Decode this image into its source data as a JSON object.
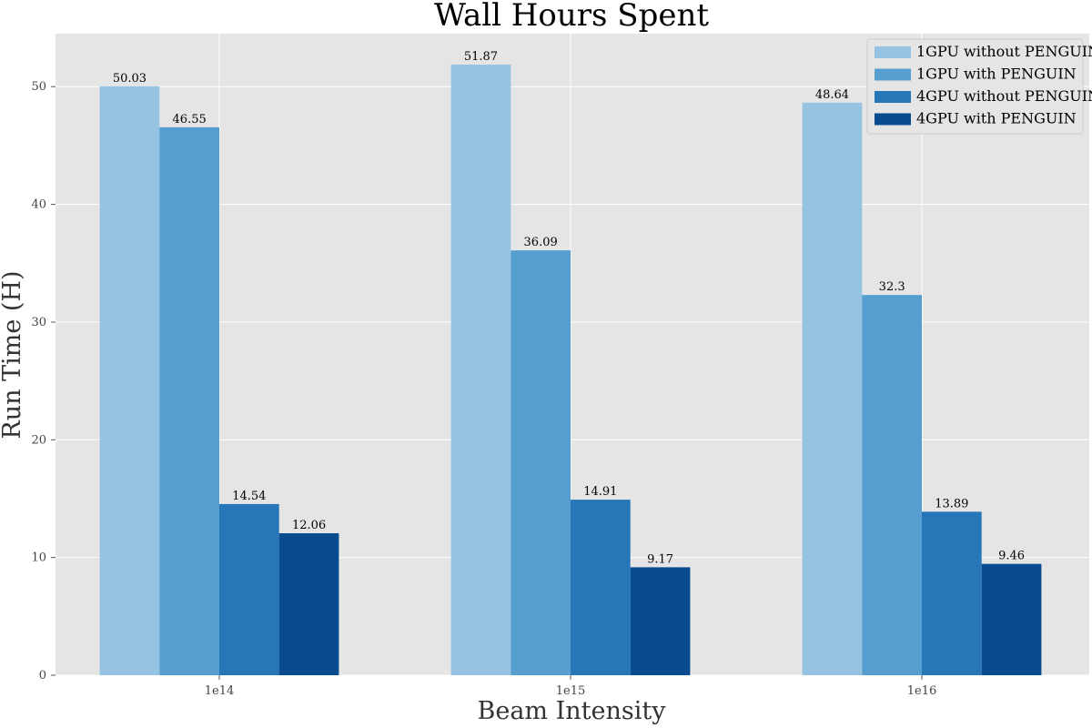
{
  "chart_data": {
    "type": "bar",
    "title": "Wall Hours Spent",
    "xlabel": "Beam Intensity",
    "ylabel": "Run Time (H)",
    "categories": [
      "1e14",
      "1e15",
      "1e16"
    ],
    "ylim": [
      0,
      54.5
    ],
    "yticks": [
      0,
      10,
      20,
      30,
      40,
      50
    ],
    "grid": true,
    "legend_position": "top-right",
    "series": [
      {
        "name": "1GPU without PENGUIN",
        "color": "#96c3e1",
        "values": [
          50.03,
          51.87,
          48.64
        ],
        "labels": [
          "50.03",
          "51.87",
          "48.64"
        ]
      },
      {
        "name": "1GPU with PENGUIN",
        "color": "#559ecf",
        "values": [
          46.55,
          36.09,
          32.3
        ],
        "labels": [
          "46.55",
          "36.09",
          "32.3"
        ]
      },
      {
        "name": "4GPU without PENGUIN",
        "color": "#2776b8",
        "values": [
          14.54,
          14.91,
          13.89
        ],
        "labels": [
          "14.54",
          "14.91",
          "13.89"
        ]
      },
      {
        "name": "4GPU with PENGUIN",
        "color": "#084b91",
        "values": [
          12.06,
          9.17,
          9.46
        ],
        "labels": [
          "12.06",
          "9.17",
          "9.46"
        ]
      }
    ]
  }
}
